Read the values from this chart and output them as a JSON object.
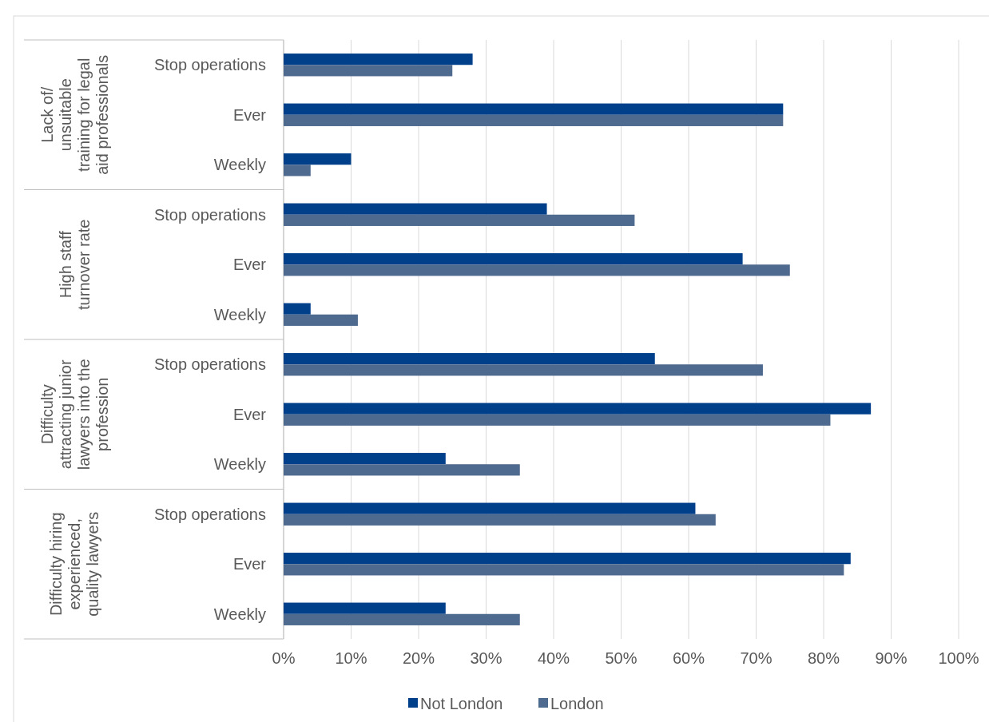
{
  "chart_data": {
    "type": "bar",
    "orientation": "horizontal",
    "categories": [
      "Stop operations",
      "Ever",
      "Weekly",
      "Stop operations",
      "Ever",
      "Weekly",
      "Stop operations",
      "Ever",
      "Weekly",
      "Stop operations",
      "Ever",
      "Weekly"
    ],
    "annotations": [
      "Lack of/ unsuitable training for legal aid professionals",
      "High staff turnover rate",
      "Difficulty attracting junior lawyers into the profession",
      "Difficulty hiring experienced, quality lawyers"
    ],
    "series": [
      {
        "name": "Not London",
        "color": "#00408a",
        "values": [
          28,
          74,
          10,
          39,
          68,
          4,
          55,
          87,
          24,
          61,
          84,
          24
        ]
      },
      {
        "name": "London",
        "color": "#4f6a8f",
        "values": [
          25,
          74,
          4,
          52,
          75,
          11,
          71,
          81,
          35,
          64,
          83,
          35
        ]
      }
    ],
    "xlim": [
      0,
      100
    ],
    "xticks": [
      {
        "value": 0,
        "label": "0%"
      },
      {
        "value": 10,
        "label": "10%"
      },
      {
        "value": 20,
        "label": "20%"
      },
      {
        "value": 30,
        "label": "30%"
      },
      {
        "value": 40,
        "label": "40%"
      },
      {
        "value": 50,
        "label": "50%"
      },
      {
        "value": 60,
        "label": "60%"
      },
      {
        "value": 70,
        "label": "70%"
      },
      {
        "value": 80,
        "label": "80%"
      },
      {
        "value": 90,
        "label": "90%"
      },
      {
        "value": 100,
        "label": "100%"
      }
    ],
    "grid": "x",
    "legend": "bottom"
  }
}
